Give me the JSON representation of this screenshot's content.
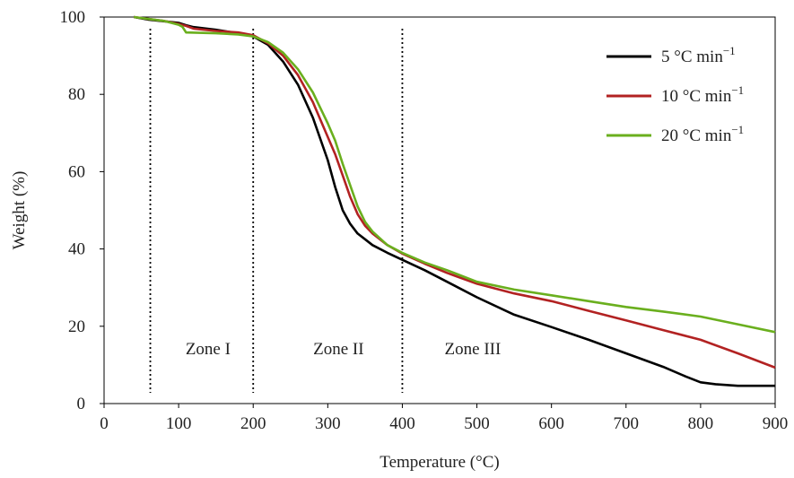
{
  "chart_data": {
    "type": "line",
    "title": "",
    "xlabel": "Temperature (°C)",
    "ylabel": "Weight (%)",
    "xlim": [
      0,
      900
    ],
    "ylim": [
      0,
      100
    ],
    "xticks": [
      0,
      100,
      200,
      300,
      400,
      500,
      600,
      700,
      800,
      900
    ],
    "yticks": [
      0,
      20,
      40,
      60,
      80,
      100
    ],
    "grid": false,
    "legend_position": "top-right",
    "series": [
      {
        "name": "5 °C min",
        "name_sup": "−1",
        "color": "#000000",
        "x": [
          40,
          60,
          80,
          100,
          110,
          120,
          150,
          180,
          200,
          220,
          240,
          260,
          280,
          300,
          310,
          320,
          330,
          340,
          350,
          360,
          380,
          400,
          430,
          460,
          500,
          550,
          600,
          650,
          700,
          750,
          780,
          800,
          820,
          850,
          900
        ],
        "y": [
          100,
          99.3,
          98.9,
          98.5,
          97.9,
          97.4,
          96.7,
          95.8,
          95.0,
          92.8,
          88.5,
          82.5,
          74.0,
          63.0,
          56.0,
          50.0,
          46.5,
          44.0,
          42.5,
          41.0,
          39.0,
          37.2,
          34.5,
          31.5,
          27.5,
          23.0,
          19.8,
          16.5,
          13.0,
          9.5,
          7.0,
          5.5,
          5.0,
          4.6,
          4.6
        ]
      },
      {
        "name": "10 °C min",
        "name_sup": "−1",
        "color": "#b22222",
        "x": [
          40,
          60,
          80,
          100,
          110,
          120,
          150,
          180,
          200,
          220,
          240,
          260,
          280,
          300,
          310,
          320,
          330,
          340,
          350,
          360,
          380,
          400,
          430,
          460,
          500,
          550,
          600,
          650,
          700,
          750,
          800,
          850,
          900
        ],
        "y": [
          100,
          99.5,
          99.0,
          98.2,
          97.7,
          97.0,
          96.4,
          96.0,
          95.3,
          93.2,
          90.0,
          85.0,
          78.0,
          69.0,
          64.5,
          59.0,
          53.5,
          49.0,
          46.0,
          44.0,
          41.0,
          38.8,
          36.2,
          33.8,
          31.0,
          28.5,
          26.5,
          24.0,
          21.5,
          19.0,
          16.5,
          13.0,
          9.3
        ]
      },
      {
        "name": "20 °C min",
        "name_sup": "−1",
        "color": "#6aaf1e",
        "x": [
          40,
          60,
          80,
          100,
          105,
          110,
          150,
          180,
          200,
          220,
          240,
          260,
          280,
          300,
          310,
          320,
          330,
          340,
          350,
          360,
          380,
          400,
          430,
          460,
          500,
          550,
          600,
          650,
          700,
          750,
          800,
          850,
          900
        ],
        "y": [
          100,
          99.5,
          99.0,
          98.0,
          97.5,
          96.0,
          95.8,
          95.5,
          95.0,
          93.5,
          90.8,
          86.5,
          80.5,
          72.5,
          68.0,
          62.0,
          56.5,
          51.0,
          47.0,
          44.5,
          41.0,
          39.0,
          36.5,
          34.5,
          31.5,
          29.5,
          28.0,
          26.5,
          25.0,
          23.8,
          22.5,
          20.5,
          18.5
        ]
      }
    ],
    "zone_boundaries": [
      62,
      200,
      400
    ],
    "zones": [
      {
        "label": "Zone I",
        "x": 125
      },
      {
        "label": "Zone II",
        "x": 300
      },
      {
        "label": "Zone III",
        "x": 480
      }
    ]
  }
}
